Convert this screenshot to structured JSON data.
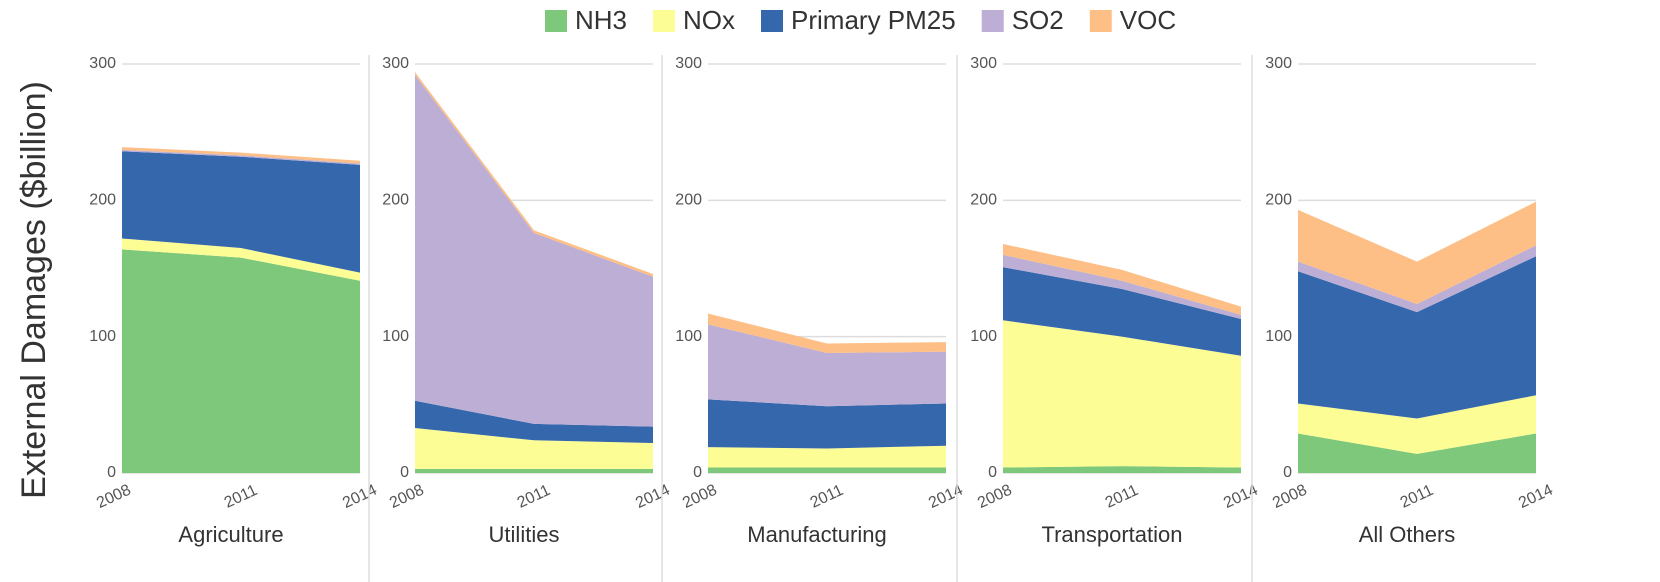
{
  "chart_data": [
    {
      "type": "area",
      "stacked": true,
      "ylabel": "External Damages ($billion)",
      "xlabel": "Agriculture",
      "categories": [
        "2008",
        "2011",
        "2014"
      ],
      "ylim": [
        0,
        300
      ],
      "yticks": [
        0,
        100,
        200,
        300
      ],
      "grid": true,
      "series": [
        {
          "name": "NH3",
          "color": "#7dc87a",
          "values": [
            164,
            158,
            141
          ]
        },
        {
          "name": "NOx",
          "color": "#fdfd96",
          "values": [
            8,
            7,
            6
          ]
        },
        {
          "name": "Primary PM25",
          "color": "#3567ad",
          "values": [
            64,
            67,
            79
          ]
        },
        {
          "name": "SO2",
          "color": "#bcaed4",
          "values": [
            1,
            1,
            1
          ]
        },
        {
          "name": "VOC",
          "color": "#fdbf85",
          "values": [
            2,
            2,
            2
          ]
        }
      ]
    },
    {
      "type": "area",
      "stacked": true,
      "xlabel": "Utilities",
      "categories": [
        "2008",
        "2011",
        "2014"
      ],
      "ylim": [
        0,
        300
      ],
      "yticks": [
        0,
        100,
        200,
        300
      ],
      "grid": true,
      "series": [
        {
          "name": "NH3",
          "color": "#7dc87a",
          "values": [
            3,
            3,
            3
          ]
        },
        {
          "name": "NOx",
          "color": "#fdfd96",
          "values": [
            30,
            21,
            19
          ]
        },
        {
          "name": "Primary PM25",
          "color": "#3567ad",
          "values": [
            20,
            12,
            12
          ]
        },
        {
          "name": "SO2",
          "color": "#bcaed4",
          "values": [
            239,
            140,
            110
          ]
        },
        {
          "name": "VOC",
          "color": "#fdbf85",
          "values": [
            2,
            2,
            2
          ]
        }
      ]
    },
    {
      "type": "area",
      "stacked": true,
      "xlabel": "Manufacturing",
      "categories": [
        "2008",
        "2011",
        "2014"
      ],
      "ylim": [
        0,
        300
      ],
      "yticks": [
        0,
        100,
        200,
        300
      ],
      "grid": true,
      "series": [
        {
          "name": "NH3",
          "color": "#7dc87a",
          "values": [
            4,
            4,
            4
          ]
        },
        {
          "name": "NOx",
          "color": "#fdfd96",
          "values": [
            15,
            14,
            16
          ]
        },
        {
          "name": "Primary PM25",
          "color": "#3567ad",
          "values": [
            35,
            31,
            31
          ]
        },
        {
          "name": "SO2",
          "color": "#bcaed4",
          "values": [
            55,
            39,
            38
          ]
        },
        {
          "name": "VOC",
          "color": "#fdbf85",
          "values": [
            8,
            7,
            7
          ]
        }
      ]
    },
    {
      "type": "area",
      "stacked": true,
      "xlabel": "Transportation",
      "categories": [
        "2008",
        "2011",
        "2014"
      ],
      "ylim": [
        0,
        300
      ],
      "yticks": [
        0,
        100,
        200,
        300
      ],
      "grid": true,
      "series": [
        {
          "name": "NH3",
          "color": "#7dc87a",
          "values": [
            4,
            5,
            4
          ]
        },
        {
          "name": "NOx",
          "color": "#fdfd96",
          "values": [
            108,
            95,
            82
          ]
        },
        {
          "name": "Primary PM25",
          "color": "#3567ad",
          "values": [
            39,
            35,
            27
          ]
        },
        {
          "name": "SO2",
          "color": "#bcaed4",
          "values": [
            9,
            6,
            3
          ]
        },
        {
          "name": "VOC",
          "color": "#fdbf85",
          "values": [
            8,
            8,
            6
          ]
        }
      ]
    },
    {
      "type": "area",
      "stacked": true,
      "xlabel": "All Others",
      "categories": [
        "2008",
        "2011",
        "2014"
      ],
      "ylim": [
        0,
        300
      ],
      "yticks": [
        0,
        100,
        200,
        300
      ],
      "grid": true,
      "series": [
        {
          "name": "NH3",
          "color": "#7dc87a",
          "values": [
            29,
            14,
            29
          ]
        },
        {
          "name": "NOx",
          "color": "#fdfd96",
          "values": [
            22,
            26,
            28
          ]
        },
        {
          "name": "Primary PM25",
          "color": "#3567ad",
          "values": [
            97,
            78,
            102
          ]
        },
        {
          "name": "SO2",
          "color": "#bcaed4",
          "values": [
            7,
            6,
            8
          ]
        },
        {
          "name": "VOC",
          "color": "#fdbf85",
          "values": [
            38,
            31,
            32
          ]
        }
      ]
    }
  ]
}
